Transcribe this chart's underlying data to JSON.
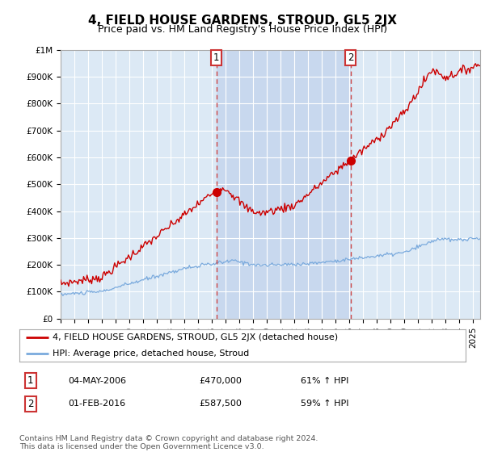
{
  "title": "4, FIELD HOUSE GARDENS, STROUD, GL5 2JX",
  "subtitle": "Price paid vs. HM Land Registry's House Price Index (HPI)",
  "ylim": [
    0,
    1000000
  ],
  "yticks": [
    0,
    100000,
    200000,
    300000,
    400000,
    500000,
    600000,
    700000,
    800000,
    900000,
    1000000
  ],
  "ytick_labels": [
    "£0",
    "£100K",
    "£200K",
    "£300K",
    "£400K",
    "£500K",
    "£600K",
    "£700K",
    "£800K",
    "£900K",
    "£1M"
  ],
  "xlim_start": 1995.0,
  "xlim_end": 2025.5,
  "plot_bg_color": "#dce9f5",
  "shaded_bg_color": "#c8d8ee",
  "grid_color": "#ffffff",
  "sale1_x": 2006.33,
  "sale1_y": 470000,
  "sale1_label": "1",
  "sale1_date": "04-MAY-2006",
  "sale1_price": "£470,000",
  "sale1_hpi": "61% ↑ HPI",
  "sale2_x": 2016.08,
  "sale2_y": 587500,
  "sale2_label": "2",
  "sale2_date": "01-FEB-2016",
  "sale2_price": "£587,500",
  "sale2_hpi": "59% ↑ HPI",
  "red_line_color": "#cc0000",
  "blue_line_color": "#7aaadd",
  "vline_color": "#cc4444",
  "marker_color": "#cc0000",
  "legend_label_red": "4, FIELD HOUSE GARDENS, STROUD, GL5 2JX (detached house)",
  "legend_label_blue": "HPI: Average price, detached house, Stroud",
  "footer_text": "Contains HM Land Registry data © Crown copyright and database right 2024.\nThis data is licensed under the Open Government Licence v3.0.",
  "title_fontsize": 11,
  "subtitle_fontsize": 9,
  "tick_fontsize": 7.5,
  "legend_fontsize": 8
}
